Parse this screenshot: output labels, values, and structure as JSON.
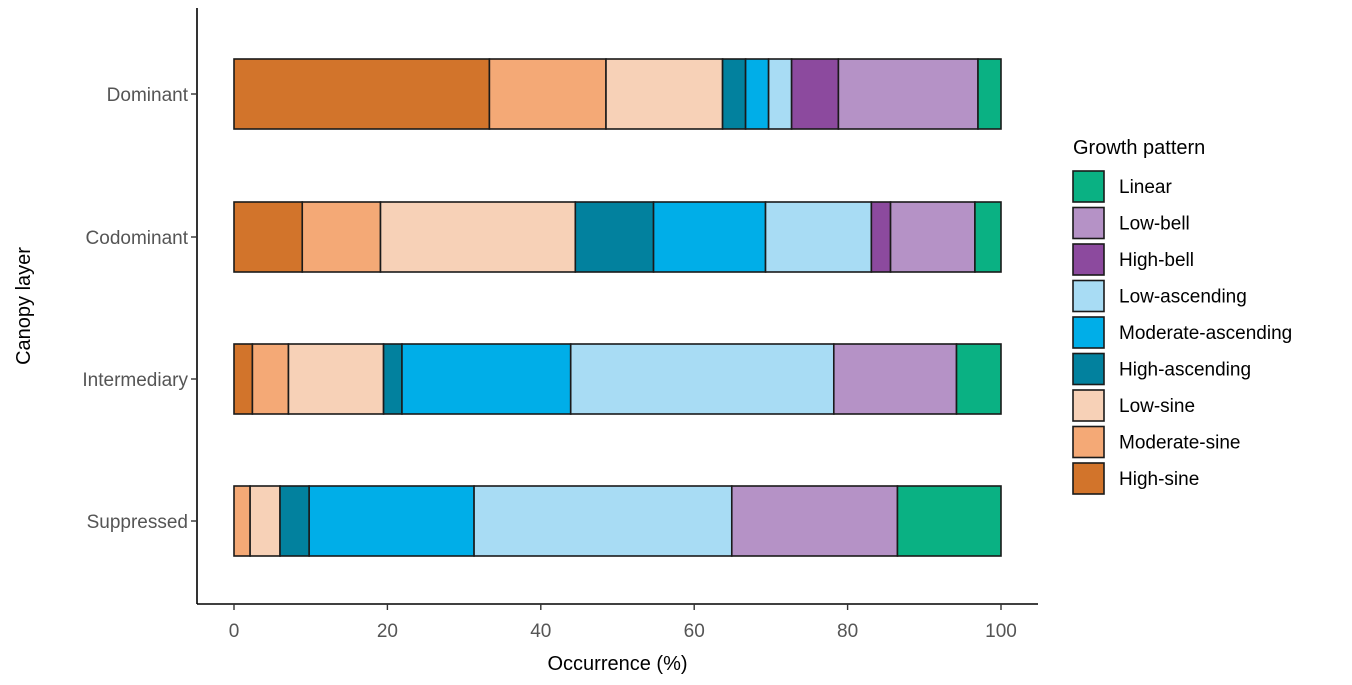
{
  "chart_data": {
    "type": "bar",
    "orientation": "horizontal",
    "stacked": true,
    "xlabel": "Occurrence (%)",
    "ylabel": "Canopy layer",
    "xlim": [
      0,
      100
    ],
    "xticks": [
      "0",
      "20",
      "40",
      "60",
      "80",
      "100"
    ],
    "grid": false,
    "legend_position": "right",
    "categories": [
      "Dominant",
      "Codominant",
      "Intermediary",
      "Suppressed"
    ],
    "series": [
      {
        "name": "High-sine",
        "color": "#D2742B",
        "values": [
          33.3,
          8.9,
          2.4,
          0.0
        ]
      },
      {
        "name": "Moderate-sine",
        "color": "#F4A976",
        "values": [
          15.2,
          10.2,
          4.7,
          2.1
        ]
      },
      {
        "name": "Low-sine",
        "color": "#F7D1B7",
        "values": [
          15.2,
          25.4,
          12.4,
          3.9
        ]
      },
      {
        "name": "High-ascending",
        "color": "#02819E",
        "values": [
          3.0,
          10.2,
          2.4,
          3.8
        ]
      },
      {
        "name": "Moderate-ascending",
        "color": "#00AEE8",
        "values": [
          3.0,
          14.6,
          22.0,
          21.5
        ]
      },
      {
        "name": "Low-ascending",
        "color": "#A8DCF4",
        "values": [
          3.0,
          13.8,
          34.3,
          33.6
        ]
      },
      {
        "name": "High-bell",
        "color": "#8C4A9E",
        "values": [
          6.1,
          2.5,
          0.0,
          0.0
        ]
      },
      {
        "name": "Low-bell",
        "color": "#B592C6",
        "values": [
          18.2,
          11.0,
          16.0,
          21.6
        ]
      },
      {
        "name": "Linear",
        "color": "#0AB183",
        "values": [
          3.0,
          3.4,
          5.8,
          13.5
        ]
      }
    ],
    "legend": {
      "title": "Growth pattern",
      "order": [
        "Linear",
        "Low-bell",
        "High-bell",
        "Low-ascending",
        "Moderate-ascending",
        "High-ascending",
        "Low-sine",
        "Moderate-sine",
        "High-sine"
      ]
    }
  }
}
